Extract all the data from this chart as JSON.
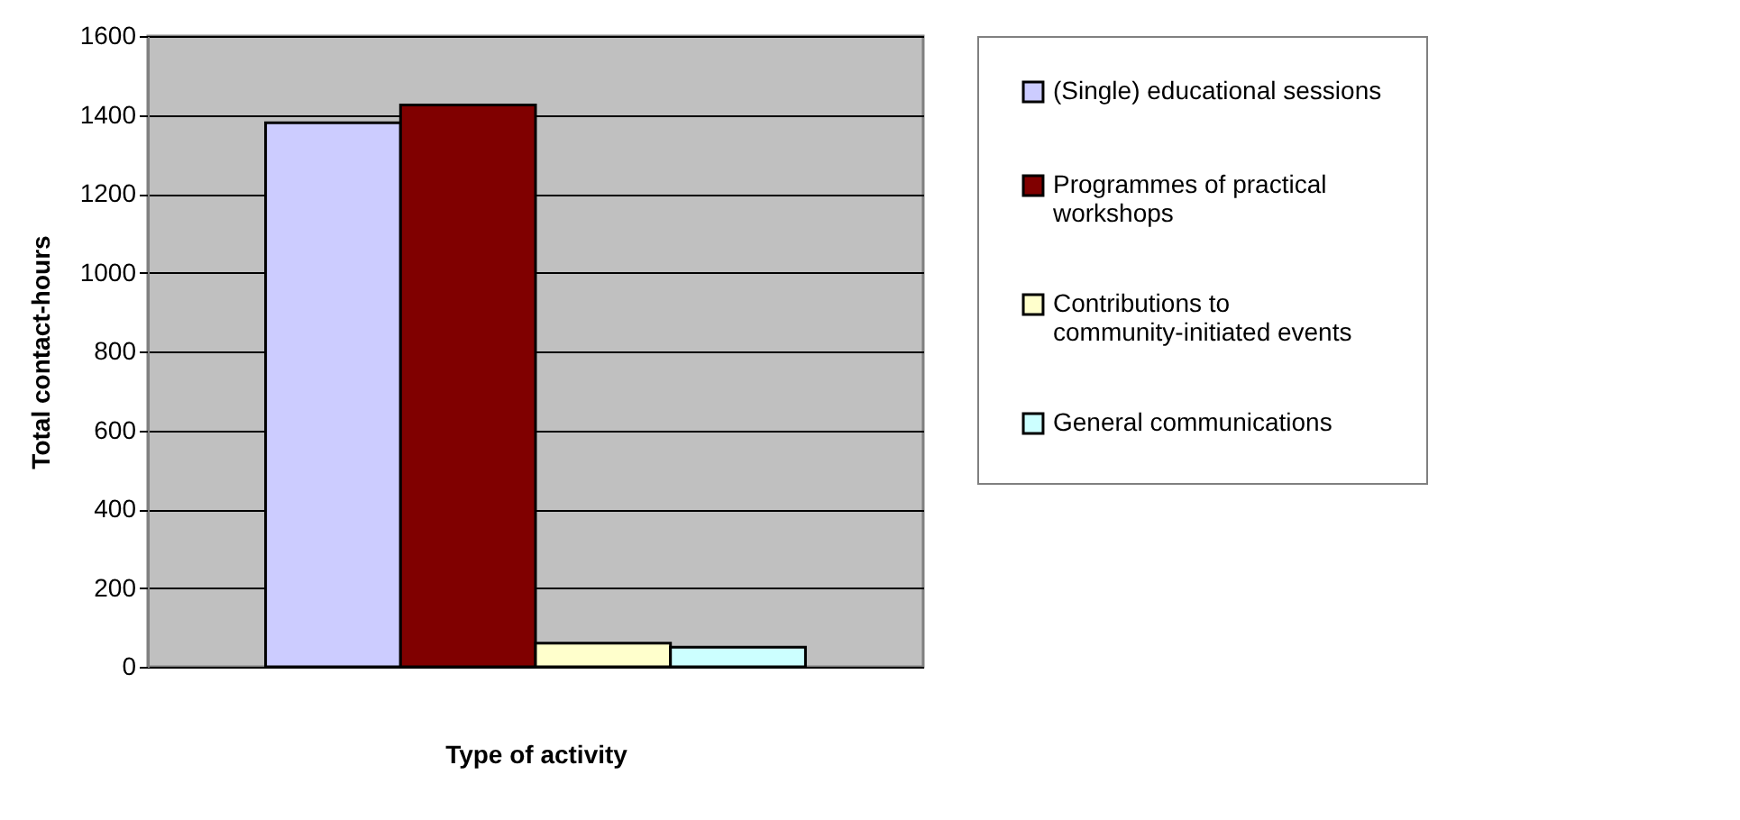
{
  "chart_data": {
    "type": "bar",
    "xlabel": "Type of activity",
    "ylabel": "Total contact-hours",
    "categories": [
      null
    ],
    "series": [
      {
        "name": "(Single) educational sessions",
        "color": "#ccccff",
        "values": [
          1380
        ]
      },
      {
        "name": "Programmes of practical workshops",
        "color": "#800000",
        "values": [
          1425
        ]
      },
      {
        "name": "Contributions to community-initiated events",
        "color": "#ffffcc",
        "values": [
          60
        ]
      },
      {
        "name": "General communications",
        "color": "#ccffff",
        "values": [
          50
        ]
      }
    ],
    "ylim": [
      0,
      1600
    ],
    "yticks": [
      0,
      200,
      400,
      600,
      800,
      1000,
      1200,
      1400,
      1600
    ],
    "grid": "y",
    "legend": "right"
  }
}
